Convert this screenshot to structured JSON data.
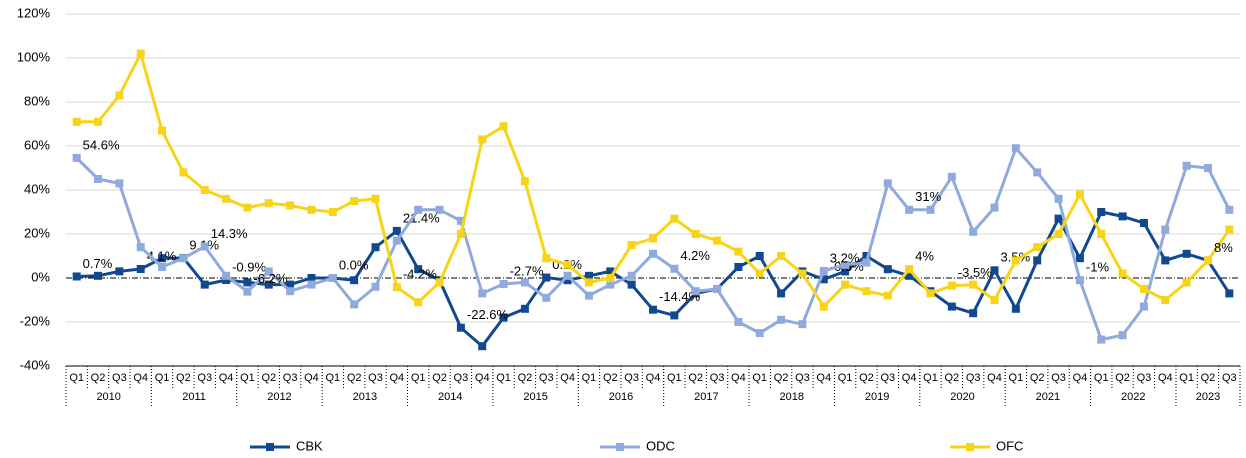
{
  "chart_data": {
    "type": "line",
    "categories": [
      "Q1",
      "Q2",
      "Q3",
      "Q4",
      "Q1",
      "Q2",
      "Q3",
      "Q4",
      "Q1",
      "Q2",
      "Q3",
      "Q4",
      "Q1",
      "Q2",
      "Q3",
      "Q4",
      "Q1",
      "Q2",
      "Q3",
      "Q4",
      "Q1",
      "Q2",
      "Q3",
      "Q4",
      "Q1",
      "Q2",
      "Q3",
      "Q4",
      "Q1",
      "Q2",
      "Q3",
      "Q4",
      "Q1",
      "Q2",
      "Q3",
      "Q4",
      "Q1",
      "Q2",
      "Q3",
      "Q4",
      "Q1",
      "Q2",
      "Q3",
      "Q4",
      "Q1",
      "Q2",
      "Q3",
      "Q4",
      "Q1",
      "Q2",
      "Q3",
      "Q4",
      "Q1",
      "Q2",
      "Q3"
    ],
    "category_groups": [
      "2010",
      "2011",
      "2012",
      "2013",
      "2014",
      "2015",
      "2016",
      "2017",
      "2018",
      "2019",
      "2020",
      "2021",
      "2022",
      "2023"
    ],
    "series": [
      {
        "name": "CBK",
        "color": "#12488f",
        "values": [
          0.7,
          1,
          3,
          4.1,
          9,
          9.1,
          -3,
          -0.9,
          -2,
          -3,
          -3,
          0,
          0,
          -1,
          14,
          21.4,
          4,
          -1,
          -22.6,
          -31,
          -18,
          -14,
          0.2,
          -1,
          1,
          3,
          -3,
          -14.4,
          -17,
          -7,
          -5,
          5,
          10,
          -7,
          3,
          -0.6,
          3,
          10,
          4,
          1,
          -6,
          -13,
          -16,
          3.5,
          -14,
          8,
          27,
          9,
          30,
          28,
          25,
          8,
          11,
          8,
          -7
        ],
        "value_labels": [
          "0.7%",
          null,
          null,
          "4.1%",
          null,
          "9.1%",
          null,
          "-0.9%",
          null,
          null,
          null,
          null,
          null,
          null,
          null,
          "21.4%",
          null,
          null,
          "-22.6%",
          null,
          null,
          null,
          "0.2%",
          null,
          null,
          null,
          null,
          "-14.4%",
          null,
          null,
          null,
          null,
          null,
          null,
          null,
          "-0.6%",
          null,
          null,
          null,
          null,
          null,
          null,
          null,
          "3.5%",
          null,
          null,
          null,
          null,
          null,
          null,
          null,
          null,
          null,
          null,
          null
        ]
      },
      {
        "name": "ODC",
        "color": "#8faadc",
        "values": [
          54.6,
          45,
          43,
          14,
          5,
          9,
          14.3,
          1,
          -6.2,
          3,
          -6,
          -3,
          0.0,
          -12,
          -4,
          17,
          31,
          31,
          26,
          -7,
          -2.7,
          -2,
          -9,
          1,
          -8,
          -3,
          1,
          11,
          4.2,
          -6,
          -5,
          -20,
          -25,
          -19,
          -21,
          3.2,
          6,
          7,
          43,
          31,
          31,
          46,
          21,
          32,
          59,
          48,
          36,
          -1,
          -28,
          -26,
          -13,
          22,
          51,
          50,
          31
        ],
        "value_labels": [
          "54.6%",
          null,
          null,
          null,
          null,
          null,
          "14.3%",
          null,
          "-6.2%",
          null,
          null,
          null,
          "0.0%",
          null,
          null,
          null,
          null,
          null,
          null,
          null,
          "-2.7%",
          null,
          null,
          null,
          null,
          null,
          null,
          null,
          "4.2%",
          null,
          null,
          null,
          null,
          null,
          null,
          "3.2%",
          null,
          null,
          null,
          "31%",
          null,
          null,
          null,
          null,
          null,
          null,
          null,
          "-1%",
          null,
          null,
          null,
          null,
          null,
          null,
          null
        ]
      },
      {
        "name": "OFC",
        "color": "#f7d417",
        "values": [
          71,
          71,
          83,
          102,
          67,
          48,
          40,
          36,
          32,
          34,
          33,
          31,
          30,
          35,
          36,
          -4.2,
          -11,
          -2,
          20,
          63,
          69,
          44,
          9,
          6,
          -2,
          0,
          15,
          18,
          27,
          20,
          17,
          12,
          2,
          10,
          2,
          -13,
          -3,
          -6,
          -8,
          4,
          -7,
          -3.5,
          -3,
          -10,
          8,
          14,
          20,
          38,
          20,
          2,
          -5,
          -10,
          -2,
          8,
          22
        ],
        "value_labels": [
          null,
          null,
          null,
          null,
          null,
          null,
          null,
          null,
          null,
          null,
          null,
          null,
          null,
          null,
          null,
          "-4.2%",
          null,
          null,
          null,
          null,
          null,
          null,
          null,
          null,
          null,
          null,
          null,
          null,
          null,
          null,
          null,
          null,
          null,
          null,
          null,
          null,
          null,
          null,
          null,
          "4%",
          null,
          "-3.5%",
          null,
          null,
          null,
          null,
          null,
          null,
          null,
          null,
          null,
          null,
          null,
          "8%",
          null
        ]
      }
    ],
    "ylim": [
      -40,
      120
    ],
    "yticks": [
      {
        "value": -40,
        "label": "-40%"
      },
      {
        "value": -20,
        "label": "-20%"
      },
      {
        "value": 0,
        "label": "0%"
      },
      {
        "value": 20,
        "label": "20%"
      },
      {
        "value": 40,
        "label": "40%"
      },
      {
        "value": 60,
        "label": "60%"
      },
      {
        "value": 80,
        "label": "80%"
      },
      {
        "value": 100,
        "label": "100%"
      },
      {
        "value": 120,
        "label": "120%"
      }
    ],
    "grid": true,
    "legend": "bottom"
  }
}
